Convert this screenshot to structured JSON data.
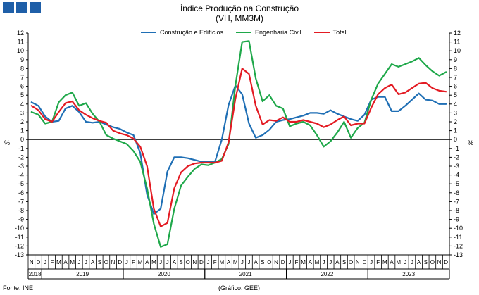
{
  "header": {
    "logo_icon": "ine-logo-icon"
  },
  "chart_data": {
    "type": "line",
    "title": "Índice Produção na Construção",
    "subtitle": "(VH, MM3M)",
    "ylabel_left": "%",
    "ylabel_right": "%",
    "ylim": [
      -13,
      12
    ],
    "yticks": [
      12,
      11,
      10,
      9,
      8,
      7,
      6,
      5,
      4,
      3,
      2,
      1,
      0,
      -1,
      -2,
      -3,
      -4,
      -5,
      -6,
      -7,
      -8,
      -9,
      -10,
      -11,
      -12,
      -13
    ],
    "grid": false,
    "legend_position": "top",
    "month_labels": [
      "N",
      "D",
      "J",
      "F",
      "M",
      "A",
      "M",
      "J",
      "J",
      "A",
      "S",
      "O",
      "N",
      "D",
      "J",
      "F",
      "M",
      "A",
      "M",
      "J",
      "J",
      "A",
      "S",
      "O",
      "N",
      "D",
      "J",
      "F",
      "M",
      "A",
      "M",
      "J",
      "J",
      "A",
      "S",
      "O",
      "N",
      "D",
      "J",
      "F",
      "M",
      "A",
      "M",
      "J",
      "J",
      "A",
      "S",
      "O",
      "N",
      "D",
      "J",
      "F",
      "M",
      "A",
      "M",
      "J",
      "J",
      "A",
      "S",
      "O",
      "N",
      "D"
    ],
    "years": [
      {
        "label": "2018",
        "start": 0,
        "count": 2
      },
      {
        "label": "2019",
        "start": 2,
        "count": 12
      },
      {
        "label": "2020",
        "start": 14,
        "count": 12
      },
      {
        "label": "2021",
        "start": 26,
        "count": 12
      },
      {
        "label": "2022",
        "start": 38,
        "count": 12
      },
      {
        "label": "2023",
        "start": 50,
        "count": 12
      }
    ],
    "series": [
      {
        "name": "Construção e Edifícios",
        "color": "#1f6fb5",
        "values": [
          4.2,
          3.8,
          2.6,
          2.0,
          2.1,
          3.5,
          3.8,
          3.1,
          2.0,
          1.9,
          2.0,
          1.7,
          1.4,
          1.2,
          0.8,
          0.5,
          -1.5,
          -6.2,
          -8.4,
          -7.8,
          -3.6,
          -2.0,
          -2.0,
          -2.1,
          -2.3,
          -2.5,
          -2.5,
          -2.5,
          0.0,
          3.9,
          6.1,
          5.1,
          1.8,
          0.2,
          0.5,
          1.1,
          2.0,
          2.2,
          2.3,
          2.5,
          2.7,
          3.0,
          3.0,
          2.9,
          3.3,
          2.9,
          2.6,
          2.3,
          2.1,
          2.8,
          4.5,
          4.8,
          4.8,
          3.2,
          3.2,
          3.8,
          4.5,
          5.2,
          4.5,
          4.4,
          4.0,
          4.0
        ]
      },
      {
        "name": "Engenharia Civil",
        "color": "#1fa84a",
        "values": [
          3.1,
          2.8,
          1.8,
          2.0,
          4.2,
          5.0,
          5.3,
          3.8,
          4.1,
          2.9,
          2.0,
          0.5,
          0.1,
          -0.2,
          -0.5,
          -1.3,
          -2.5,
          -5.5,
          -9.5,
          -12.1,
          -11.8,
          -7.8,
          -5.2,
          -4.2,
          -3.3,
          -2.8,
          -2.9,
          -2.6,
          -2.2,
          -0.5,
          6.1,
          11.0,
          11.1,
          6.9,
          4.3,
          5.0,
          3.8,
          3.5,
          1.5,
          1.8,
          2.0,
          1.6,
          0.5,
          -0.8,
          -0.2,
          0.8,
          2.0,
          0.2,
          1.3,
          1.9,
          4.5,
          6.3,
          7.4,
          8.5,
          8.2,
          8.5,
          8.8,
          9.2,
          8.4,
          7.7,
          7.2,
          7.6
        ]
      },
      {
        "name": "Total",
        "color": "#e31b23",
        "values": [
          3.8,
          3.3,
          2.3,
          2.0,
          3.1,
          4.1,
          4.3,
          3.3,
          2.8,
          2.4,
          2.1,
          1.9,
          1.0,
          0.7,
          0.5,
          0.1,
          -0.8,
          -3.0,
          -7.8,
          -9.8,
          -9.4,
          -5.5,
          -3.7,
          -3.0,
          -2.7,
          -2.6,
          -2.6,
          -2.6,
          -2.4,
          -0.3,
          4.6,
          8.0,
          7.4,
          3.8,
          1.7,
          2.2,
          2.1,
          2.5,
          2.0,
          2.0,
          2.2,
          2.0,
          1.8,
          1.4,
          1.7,
          2.2,
          2.6,
          1.6,
          1.8,
          1.8,
          3.6,
          5.1,
          5.8,
          6.2,
          5.1,
          5.3,
          5.8,
          6.3,
          6.4,
          5.8,
          5.5,
          5.4
        ]
      }
    ]
  },
  "footer": {
    "source": "Fonte: INE",
    "credit": "(Gráfico: GEE)"
  }
}
